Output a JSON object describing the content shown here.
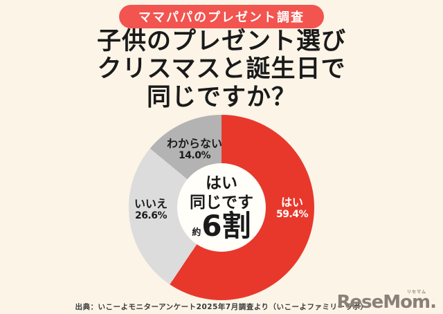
{
  "badge": {
    "label": "ママパパのプレゼント調査"
  },
  "title": {
    "line1": "子供のプレゼント選び",
    "line2": "クリスマスと誕生日で",
    "line3": "同じですか？"
  },
  "chart_data": {
    "type": "pie",
    "donut": true,
    "start_angle_deg": 0,
    "direction": "clockwise",
    "title": "子供のプレゼント選び クリスマスと誕生日で同じですか？",
    "slices": [
      {
        "label": "はい",
        "value": 59.4,
        "display": "59.4%",
        "color": "#E8382C",
        "text_color": "#FFFFFF"
      },
      {
        "label": "いいえ",
        "value": 26.6,
        "display": "26.6%",
        "color": "#DCDCDC",
        "text_color": "#1A1A1A"
      },
      {
        "label": "わからない",
        "value": 14.0,
        "display": "14.0%",
        "color": "#B3B3B3",
        "text_color": "#1A1A1A"
      }
    ],
    "center_text": {
      "line1": "はい",
      "line2": "同じです",
      "approx_prefix": "約",
      "big_value": "6割"
    },
    "legend_position": "on-slice",
    "grid": false
  },
  "source": {
    "text": "出典：いこーよモニターアンケート2025年7月調査より（いこーよファミリーラボ）"
  },
  "logo": {
    "text": "ReseMom",
    "ruby": "リセマム",
    "suffix": ".",
    "color": "#8A8078"
  },
  "colors": {
    "background": "#FBF4E7",
    "badge_background": "#F2544F",
    "badge_text": "#FFFFFF",
    "title_text": "#1A1A1A",
    "donut_hole": "#FFFEF9",
    "source_text": "#3A3A3A"
  }
}
